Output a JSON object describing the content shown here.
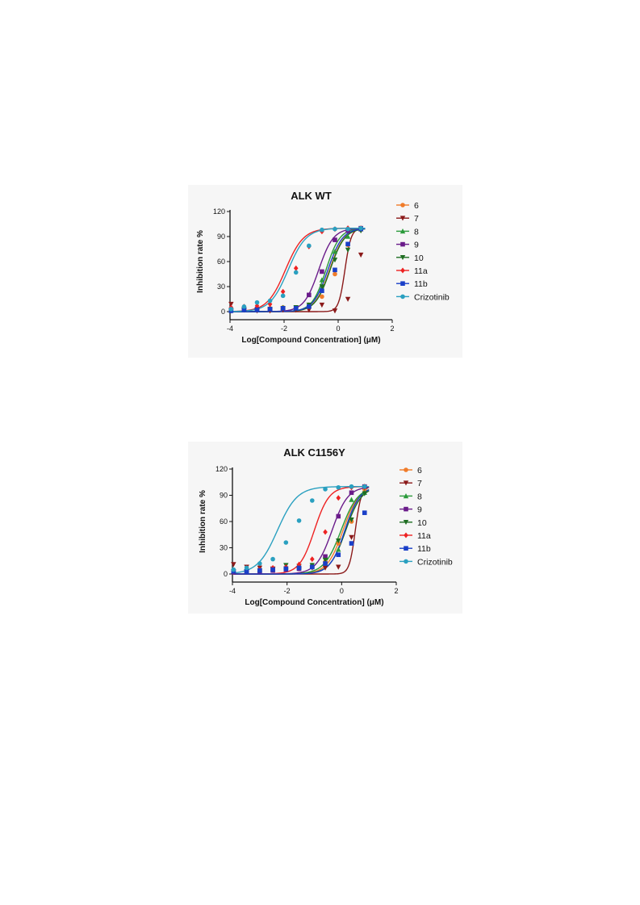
{
  "chart_data": [
    {
      "type": "scatter",
      "title": "ALK WT",
      "xlabel": "Log[Compound Concentration] (μM)",
      "ylabel": "Inhibition rate %",
      "xlim": [
        -4,
        2
      ],
      "ylim": [
        0,
        120
      ],
      "xticks": [
        "-4",
        "-2",
        "0",
        "2"
      ],
      "yticks": [
        "0",
        "30",
        "60",
        "90",
        "120"
      ],
      "legend_position": "right",
      "grid": false,
      "x": [
        -3.96,
        -3.48,
        -3.0,
        -2.52,
        -2.04,
        -1.56,
        -1.08,
        -0.6,
        -0.12,
        0.36,
        0.84
      ],
      "series": [
        {
          "name": "6",
          "color": "#f07c2a",
          "marker": "circle",
          "ic50_log": -0.32,
          "hill": 1.6,
          "values": [
            2,
            2,
            3,
            4,
            5,
            5,
            7,
            18,
            45,
            80,
            98
          ]
        },
        {
          "name": "7",
          "color": "#8b1a1a",
          "marker": "triangle-down",
          "ic50_log": 0.25,
          "hill": 3.8,
          "values": [
            9,
            2,
            1,
            1,
            2,
            2,
            2,
            8,
            1,
            15,
            68
          ]
        },
        {
          "name": "8",
          "color": "#2a9a3a",
          "marker": "triangle-up",
          "ic50_log": -0.45,
          "hill": 1.7,
          "values": [
            2,
            3,
            3,
            4,
            5,
            4,
            8,
            38,
            72,
            90,
            99
          ]
        },
        {
          "name": "9",
          "color": "#6a1b8a",
          "marker": "square",
          "ic50_log": -0.72,
          "hill": 1.6,
          "values": [
            2,
            3,
            3,
            3,
            4,
            5,
            20,
            48,
            86,
            97,
            100
          ]
        },
        {
          "name": "10",
          "color": "#1f6e22",
          "marker": "triangle-down",
          "ic50_log": -0.3,
          "hill": 1.6,
          "values": [
            1,
            2,
            2,
            3,
            4,
            5,
            8,
            30,
            62,
            74,
            97
          ]
        },
        {
          "name": "11a",
          "color": "#ee2222",
          "marker": "diamond",
          "ic50_log": -1.95,
          "hill": 1.3,
          "values": [
            5,
            6,
            7,
            9,
            24,
            52,
            78,
            96,
            99,
            100,
            100
          ]
        },
        {
          "name": "11b",
          "color": "#1a3fc8",
          "marker": "square",
          "ic50_log": -0.38,
          "hill": 1.6,
          "values": [
            1,
            2,
            2,
            3,
            4,
            4,
            6,
            25,
            50,
            81,
            99
          ]
        },
        {
          "name": "Crizotinib",
          "color": "#2aa0c0",
          "marker": "circle",
          "ic50_log": -1.85,
          "hill": 1.3,
          "values": [
            3,
            6,
            11,
            13,
            19,
            47,
            79,
            98,
            99,
            99,
            100
          ]
        }
      ]
    },
    {
      "type": "scatter",
      "title": "ALK C1156Y",
      "xlabel": "Log[Compound Concentration] (μM)",
      "ylabel": "Inhibition rate %",
      "xlim": [
        -4,
        2
      ],
      "ylim": [
        0,
        120
      ],
      "xticks": [
        "-4",
        "-2",
        "0",
        "2"
      ],
      "yticks": [
        "0",
        "30",
        "60",
        "90",
        "120"
      ],
      "legend_position": "right",
      "grid": false,
      "x": [
        -3.96,
        -3.48,
        -3.0,
        -2.52,
        -2.04,
        -1.56,
        -1.08,
        -0.6,
        -0.12,
        0.36,
        0.84
      ],
      "series": [
        {
          "name": "6",
          "color": "#f07c2a",
          "marker": "circle",
          "ic50_log": 0.05,
          "hill": 1.5,
          "values": [
            3,
            3,
            4,
            5,
            7,
            7,
            9,
            14,
            35,
            60,
            97
          ]
        },
        {
          "name": "7",
          "color": "#8b1a1a",
          "marker": "triangle-down",
          "ic50_log": 0.5,
          "hill": 4.0,
          "values": [
            11,
            8,
            7,
            6,
            6,
            6,
            7,
            7,
            8,
            42,
            99
          ]
        },
        {
          "name": "8",
          "color": "#2a9a3a",
          "marker": "triangle-up",
          "ic50_log": -0.02,
          "hill": 1.4,
          "values": [
            3,
            3,
            5,
            6,
            8,
            9,
            10,
            12,
            28,
            85,
            93
          ]
        },
        {
          "name": "9",
          "color": "#6a1b8a",
          "marker": "square",
          "ic50_log": -0.35,
          "hill": 1.5,
          "values": [
            2,
            3,
            3,
            4,
            5,
            6,
            8,
            20,
            66,
            93,
            100
          ]
        },
        {
          "name": "10",
          "color": "#1f6e22",
          "marker": "triangle-down",
          "ic50_log": 0.15,
          "hill": 1.5,
          "values": [
            3,
            3,
            4,
            5,
            10,
            9,
            10,
            16,
            38,
            62,
            92
          ]
        },
        {
          "name": "11a",
          "color": "#ee2222",
          "marker": "diamond",
          "ic50_log": -1.0,
          "hill": 1.6,
          "values": [
            3,
            4,
            5,
            7,
            8,
            11,
            17,
            48,
            87,
            99,
            100
          ]
        },
        {
          "name": "11b",
          "color": "#1a3fc8",
          "marker": "square",
          "ic50_log": 0.12,
          "hill": 1.6,
          "values": [
            3,
            3,
            4,
            5,
            6,
            7,
            8,
            12,
            22,
            35,
            70
          ]
        },
        {
          "name": "Crizotinib",
          "color": "#2aa0c0",
          "marker": "circle",
          "ic50_log": -2.35,
          "hill": 1.2,
          "values": [
            5,
            7,
            12,
            17,
            36,
            61,
            84,
            97,
            99,
            100,
            100
          ]
        }
      ]
    }
  ]
}
